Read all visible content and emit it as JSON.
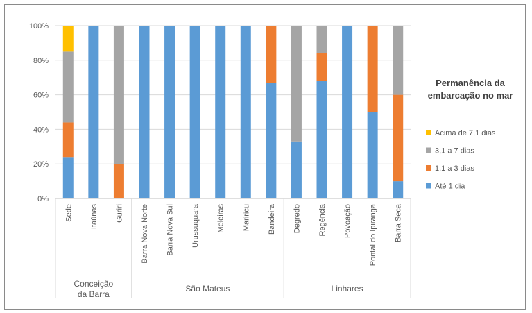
{
  "chart_data": {
    "type": "bar",
    "stacked": true,
    "categories": [
      "Sede",
      "Itaúnas",
      "Guriri",
      "Barra Nova Norte",
      "Barra Nova Sul",
      "Urussuquara",
      "Meleiras",
      "Mariricu",
      "Bandeira",
      "Degredo",
      "Regência",
      "Povoação",
      "Pontal do Ipiranga",
      "Barra Seca"
    ],
    "groups": [
      {
        "label": "Conceição\nda Barra",
        "from": 0,
        "to": 2
      },
      {
        "label": "São Mateus",
        "from": 3,
        "to": 8
      },
      {
        "label": "Linhares",
        "from": 9,
        "to": 13
      }
    ],
    "series": [
      {
        "name": "Até 1 dia",
        "color": "#5b9bd5",
        "values": [
          24,
          100,
          0,
          100,
          100,
          100,
          100,
          100,
          67,
          33,
          68,
          100,
          50,
          10
        ]
      },
      {
        "name": "1,1 a 3 dias",
        "color": "#ed7d31",
        "values": [
          20,
          0,
          20,
          0,
          0,
          0,
          0,
          0,
          33,
          0,
          16,
          0,
          50,
          50
        ]
      },
      {
        "name": "3,1 a 7 dias",
        "color": "#a5a5a5",
        "values": [
          41,
          0,
          80,
          0,
          0,
          0,
          0,
          0,
          0,
          67,
          16,
          0,
          0,
          40
        ]
      },
      {
        "name": "Acima de 7,1 dias",
        "color": "#ffc000",
        "values": [
          15,
          0,
          0,
          0,
          0,
          0,
          0,
          0,
          0,
          0,
          0,
          0,
          0,
          0
        ]
      }
    ],
    "ylim": [
      0,
      100
    ],
    "yticks": [
      "0%",
      "20%",
      "40%",
      "60%",
      "80%",
      "100%"
    ],
    "grid": true,
    "legend": {
      "title": "Permanência da\nembarcação no mar",
      "placement": "right",
      "order": [
        "Acima de 7,1 dias",
        "3,1 a 7 dias",
        "1,1 a 3 dias",
        "Até 1 dia"
      ]
    }
  }
}
